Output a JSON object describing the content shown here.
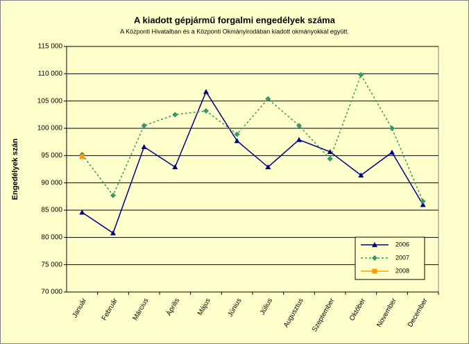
{
  "chart_data": {
    "type": "line",
    "title": "A  kiadott gépjármű forgalmi engedélyek száma",
    "subtitle": "A  Központi Hivatalban és a Központi Okmányirodában kiadott okmányokkal együtt.",
    "y_label": "Engedélyek szán",
    "categories": [
      "Január",
      "Február",
      "Március",
      "Április",
      "Május",
      "Június",
      "Július",
      "Augusztus",
      "Szeptember",
      "Október",
      "November",
      "December"
    ],
    "series": [
      {
        "name": "2006",
        "color": "#000080",
        "line_style": "solid",
        "marker": "triangle",
        "values": [
          84600,
          80800,
          96600,
          92900,
          106700,
          97700,
          92900,
          97900,
          95700,
          91400,
          95600,
          86000
        ]
      },
      {
        "name": "2007",
        "color": "#339966",
        "line_style": "dashed",
        "marker": "diamond",
        "values": [
          95200,
          87700,
          100500,
          102500,
          103200,
          98900,
          105400,
          100500,
          94400,
          109800,
          100000,
          86600
        ]
      },
      {
        "name": "2008",
        "color": "#ff9900",
        "line_style": "solid",
        "marker": "square",
        "values": [
          94800,
          null,
          null,
          null,
          null,
          null,
          null,
          null,
          null,
          null,
          null,
          null
        ]
      }
    ],
    "ylim": [
      70000,
      115000
    ],
    "yticks": [
      {
        "value": 70000,
        "label": "70 000"
      },
      {
        "value": 75000,
        "label": "75 000"
      },
      {
        "value": 80000,
        "label": "80 000"
      },
      {
        "value": 85000,
        "label": "85 000"
      },
      {
        "value": 90000,
        "label": "90 000"
      },
      {
        "value": 95000,
        "label": "95 000"
      },
      {
        "value": 100000,
        "label": "100 000"
      },
      {
        "value": 105000,
        "label": "105 000"
      },
      {
        "value": 110000,
        "label": "110 000"
      },
      {
        "value": 115000,
        "label": "115 000"
      }
    ],
    "grid": true
  }
}
